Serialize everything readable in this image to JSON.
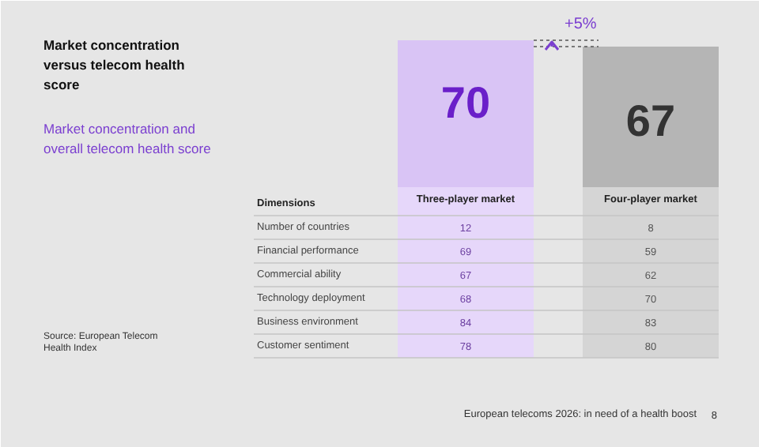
{
  "chart_data": [
    {
      "type": "other",
      "title": "Market concentration versus telecom health score",
      "subtitle": "Market concentration and overall telecom health score",
      "annotations": [
        "Source: European Telecom Health Index",
        "European telecoms 2026: in need of a health boost",
        "8"
      ]
    },
    {
      "type": "bar",
      "categories": [
        "Three-player market",
        "Four-player market"
      ],
      "values": [
        70,
        67
      ],
      "colors": [
        "#d9c4f5",
        "#b5b5b5"
      ],
      "data_labels": true,
      "annotations": [
        "+5%"
      ]
    },
    {
      "type": "other",
      "xlabel": "Dimensions",
      "data_labels": true,
      "categories": [
        "Number of countries",
        "Financial performance",
        "Commercial ability",
        "Technology deployment",
        "Business environment",
        "Customer sentiment"
      ],
      "series": [
        {
          "color": "#e6d7fa",
          "values": [
            12,
            69,
            67,
            68,
            84,
            78
          ]
        },
        {
          "color": "#d5d5d5",
          "values": [
            8,
            59,
            62,
            70,
            83,
            80
          ]
        }
      ]
    }
  ]
}
